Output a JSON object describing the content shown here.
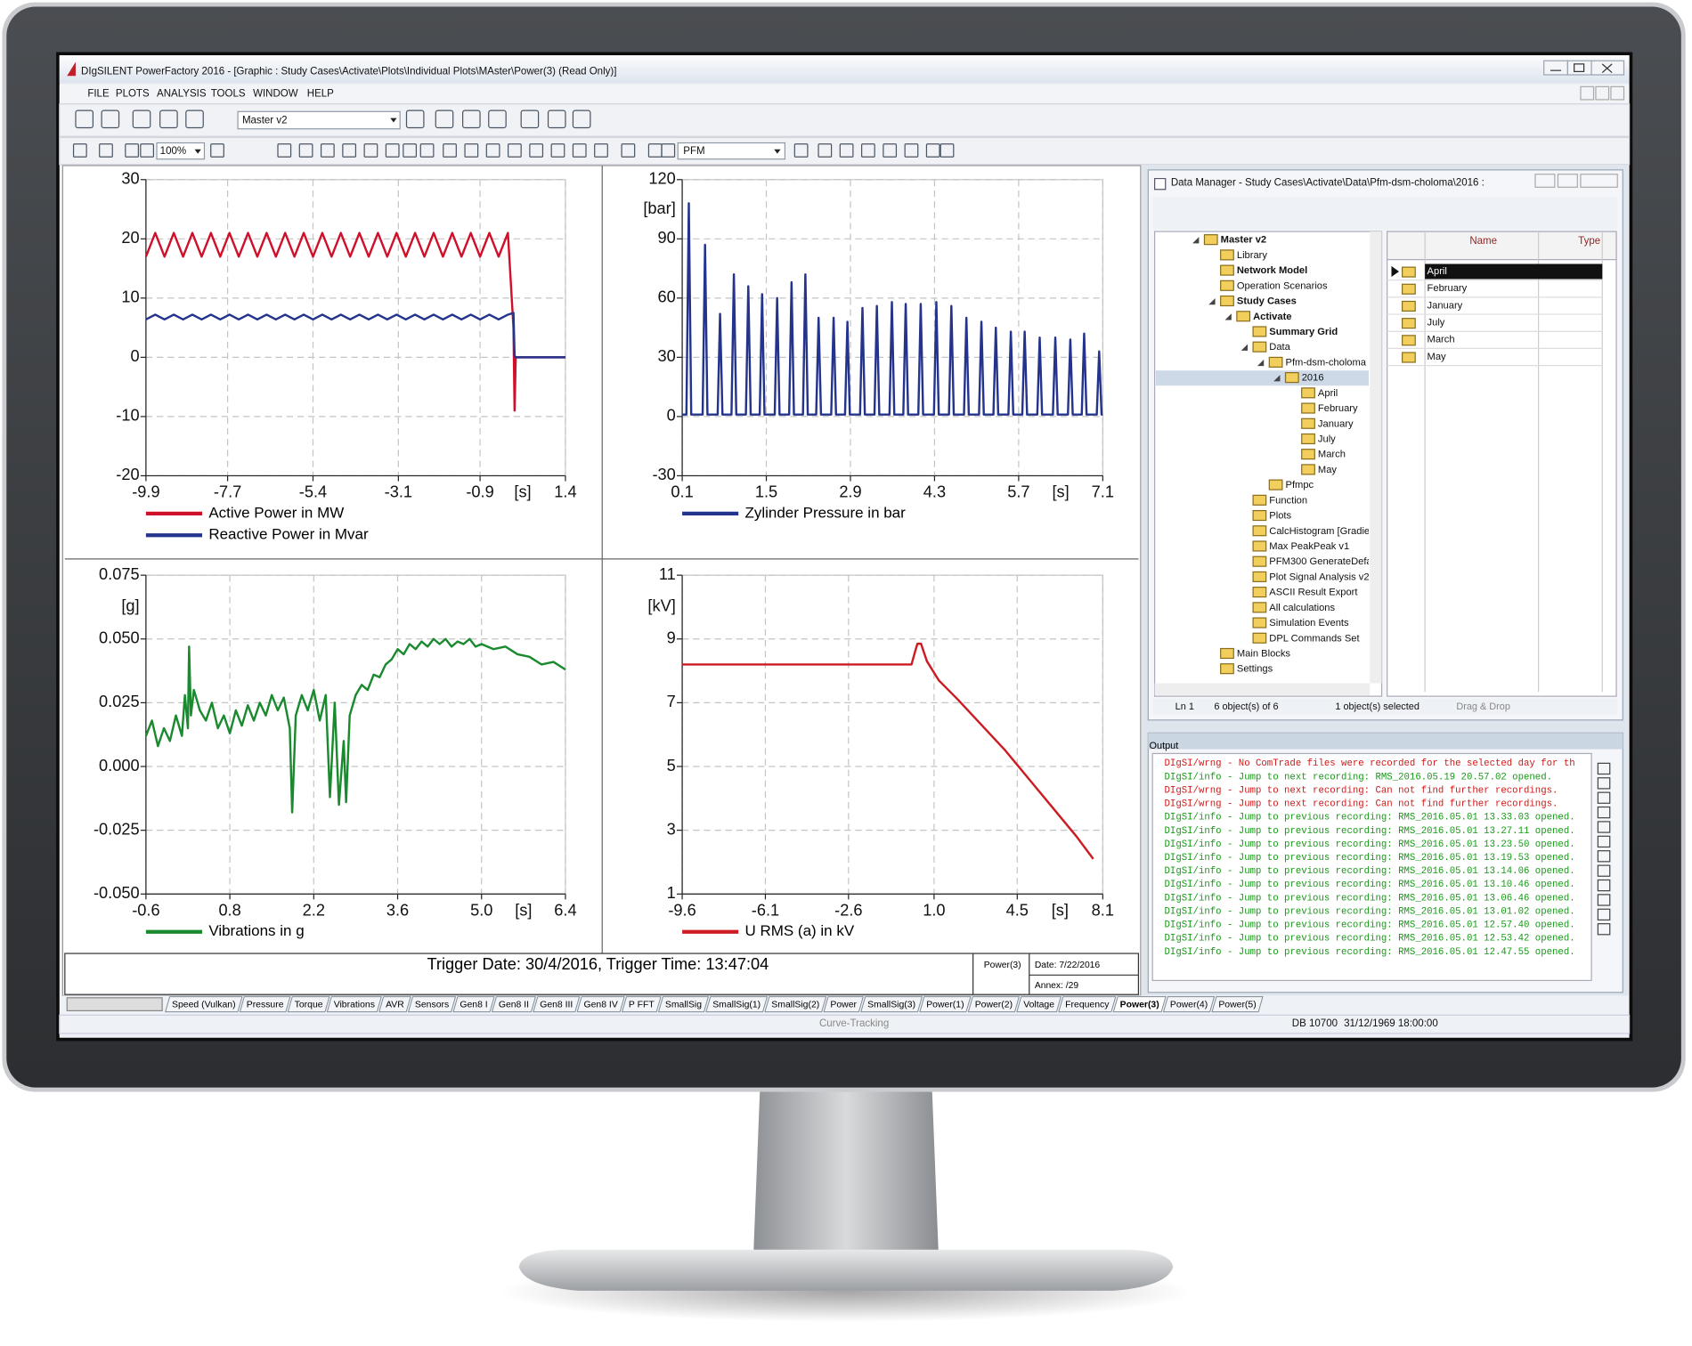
{
  "window": {
    "title": "DIgSILENT PowerFactory 2016 - [Graphic : Study Cases\\Activate\\Plots\\Individual Plots\\MAster\\Power(3)  (Read Only)]"
  },
  "menu": [
    "FILE",
    "PLOTS",
    "ANALYSIS",
    "TOOLS",
    "WINDOW",
    "HELP"
  ],
  "toolbar": {
    "project": "Master v2",
    "zoom": "100%",
    "mode": "PFM"
  },
  "chart_data": [
    {
      "type": "line",
      "grid": true,
      "xlabel": "[s]",
      "xlim": [
        -9.9,
        1.4
      ],
      "xticks": [
        -9.9,
        -7.7,
        -5.4,
        -3.1,
        -0.9,
        1.4
      ],
      "ylim": [
        -20,
        30
      ],
      "yticks": [
        -20,
        -10,
        0,
        10,
        20,
        30
      ],
      "x": [
        -9.9,
        -9.65,
        -9.4,
        -9.15,
        -8.9,
        -8.65,
        -8.4,
        -8.15,
        -7.9,
        -7.65,
        -7.4,
        -7.15,
        -6.9,
        -6.65,
        -6.4,
        -6.15,
        -5.9,
        -5.65,
        -5.4,
        -5.15,
        -4.9,
        -4.65,
        -4.4,
        -4.15,
        -3.9,
        -3.65,
        -3.4,
        -3.15,
        -2.9,
        -2.65,
        -2.4,
        -2.15,
        -1.9,
        -1.65,
        -1.4,
        -1.15,
        -0.9,
        -0.65,
        -0.4,
        -0.15,
        0.0,
        0.03,
        0.06,
        1.4
      ],
      "series": [
        {
          "name": "Active Power in MW",
          "color": "#d0102a",
          "values": [
            17,
            21,
            17,
            21,
            17,
            21,
            17,
            21,
            17,
            21,
            17,
            21,
            17,
            21,
            17,
            21,
            17,
            21,
            17,
            21,
            17,
            21,
            17,
            21,
            17,
            21,
            17,
            21,
            17,
            21,
            17,
            21,
            17,
            21,
            17,
            21,
            17,
            21,
            17,
            21,
            5,
            -9,
            0,
            0
          ]
        },
        {
          "name": "Reactive Power in Mvar",
          "color": "#24348c",
          "values": [
            6.4,
            7.2,
            6.4,
            7.2,
            6.4,
            7.2,
            6.4,
            7.2,
            6.4,
            7.2,
            6.4,
            7.2,
            6.4,
            7.2,
            6.4,
            7.2,
            6.4,
            7.2,
            6.4,
            7.2,
            6.4,
            7.2,
            6.4,
            7.2,
            6.4,
            7.2,
            6.4,
            7.2,
            6.4,
            7.2,
            6.4,
            7.2,
            6.4,
            7.2,
            6.4,
            7.2,
            6.4,
            7.2,
            6.4,
            7.2,
            7.5,
            0.3,
            0,
            0
          ]
        }
      ]
    },
    {
      "type": "line",
      "grid": true,
      "xlabel": "[s]",
      "ylabel": "[bar]",
      "xlim": [
        0.1,
        7.1
      ],
      "xticks": [
        0.1,
        1.5,
        2.9,
        4.3,
        5.7,
        7.1
      ],
      "ylim": [
        -30,
        120
      ],
      "yticks": [
        -30,
        0,
        30,
        60,
        90,
        120
      ],
      "x": [
        0.1,
        0.17,
        0.21,
        0.25,
        0.44,
        0.48,
        0.52,
        0.69,
        0.73,
        0.77,
        0.92,
        0.96,
        1.0,
        1.16,
        1.2,
        1.24,
        1.39,
        1.43,
        1.47,
        1.64,
        1.68,
        1.72,
        1.88,
        1.92,
        1.96,
        2.11,
        2.15,
        2.19,
        2.33,
        2.37,
        2.41,
        2.58,
        2.62,
        2.66,
        2.81,
        2.85,
        2.89,
        3.06,
        3.1,
        3.14,
        3.3,
        3.34,
        3.38,
        3.55,
        3.59,
        3.63,
        3.78,
        3.82,
        3.86,
        4.03,
        4.07,
        4.11,
        4.29,
        4.33,
        4.37,
        4.54,
        4.58,
        4.62,
        4.79,
        4.83,
        4.87,
        5.04,
        5.08,
        5.12,
        5.28,
        5.32,
        5.36,
        5.53,
        5.57,
        5.61,
        5.76,
        5.8,
        5.84,
        6.01,
        6.05,
        6.09,
        6.27,
        6.31,
        6.35,
        6.52,
        6.56,
        6.6,
        6.75,
        6.79,
        6.83,
        7.0,
        7.04,
        7.08,
        7.1
      ],
      "series": [
        {
          "name": "Zylinder Pressure in bar",
          "color": "#24348c",
          "values": [
            1,
            1,
            108,
            1,
            1,
            87,
            1,
            1,
            52,
            1,
            1,
            72,
            1,
            1,
            66,
            1,
            1,
            62,
            1,
            1,
            60,
            1,
            1,
            68,
            1,
            1,
            72,
            1,
            1,
            50,
            1,
            1,
            50,
            1,
            1,
            48,
            1,
            1,
            55,
            1,
            1,
            56,
            1,
            1,
            58,
            1,
            1,
            57,
            1,
            1,
            57,
            1,
            1,
            58,
            1,
            1,
            56,
            1,
            1,
            50,
            1,
            1,
            48,
            1,
            1,
            45,
            1,
            1,
            43,
            1,
            1,
            43,
            1,
            1,
            40,
            1,
            1,
            40,
            1,
            1,
            39,
            1,
            1,
            42,
            1,
            1,
            33,
            1,
            1
          ]
        }
      ]
    },
    {
      "type": "line",
      "grid": true,
      "xlabel": "[s]",
      "ylabel": "[g]",
      "xlim": [
        -0.6,
        6.4
      ],
      "xticks": [
        -0.6,
        0.8,
        2.2,
        3.6,
        {
          "value": 5.0,
          "label": "5.0"
        },
        6.4
      ],
      "ylim": [
        -0.05,
        0.075
      ],
      "yticks": [
        {
          "value": -0.05,
          "label": "-0.050"
        },
        {
          "value": -0.025,
          "label": "-0.025"
        },
        {
          "value": 0,
          "label": "0.000"
        },
        {
          "value": 0.025,
          "label": "0.025"
        },
        {
          "value": 0.05,
          "label": "0.050"
        },
        {
          "value": 0.075,
          "label": "0.075"
        }
      ],
      "x": [
        -0.6,
        -0.5,
        -0.4,
        -0.3,
        -0.2,
        -0.1,
        0.0,
        0.05,
        0.1,
        0.12,
        0.15,
        0.2,
        0.3,
        0.4,
        0.5,
        0.6,
        0.7,
        0.8,
        0.9,
        1.0,
        1.1,
        1.2,
        1.3,
        1.4,
        1.5,
        1.6,
        1.7,
        1.8,
        1.84,
        1.9,
        2.0,
        2.1,
        2.2,
        2.3,
        2.4,
        2.47,
        2.55,
        2.62,
        2.7,
        2.74,
        2.8,
        2.9,
        3.0,
        3.1,
        3.2,
        3.3,
        3.4,
        3.5,
        3.6,
        3.7,
        3.8,
        3.9,
        4.0,
        4.1,
        4.2,
        4.3,
        4.4,
        4.5,
        4.6,
        4.7,
        4.8,
        4.9,
        5.0,
        5.2,
        5.4,
        5.6,
        5.8,
        6.0,
        6.2,
        6.4
      ],
      "series": [
        {
          "name": "Vibrations in g",
          "color": "#1a8a2e",
          "values": [
            0.012,
            0.018,
            0.008,
            0.015,
            0.01,
            0.02,
            0.012,
            0.028,
            0.015,
            0.047,
            0.02,
            0.03,
            0.022,
            0.018,
            0.025,
            0.015,
            0.02,
            0.013,
            0.022,
            0.016,
            0.024,
            0.018,
            0.025,
            0.02,
            0.028,
            0.022,
            0.027,
            0.015,
            -0.018,
            0.02,
            0.028,
            0.022,
            0.03,
            0.018,
            0.028,
            -0.012,
            0.025,
            -0.015,
            0.01,
            -0.014,
            0.02,
            0.028,
            0.032,
            0.03,
            0.036,
            0.035,
            0.04,
            0.042,
            0.046,
            0.044,
            0.048,
            0.046,
            0.049,
            0.047,
            0.05,
            0.048,
            0.05,
            0.047,
            0.049,
            0.048,
            0.05,
            0.047,
            0.048,
            0.046,
            0.047,
            0.044,
            0.043,
            0.04,
            0.041,
            0.038
          ]
        }
      ]
    },
    {
      "type": "line",
      "grid": true,
      "xlabel": "[s]",
      "ylabel": "[kV]",
      "xlim": [
        -9.6,
        8.1
      ],
      "xticks": [
        -9.6,
        -6.1,
        -2.6,
        {
          "value": 1.0,
          "label": "1.0"
        },
        4.5,
        8.1
      ],
      "ylim": [
        1,
        11
      ],
      "yticks": [
        1,
        3,
        5,
        7,
        9,
        11
      ],
      "x": [
        -9.6,
        0.05,
        0.2,
        0.3,
        0.45,
        0.7,
        1.2,
        2.0,
        3.0,
        4.0,
        5.0,
        6.0,
        7.0,
        7.7
      ],
      "series": [
        {
          "name": "U RMS (a) in kV",
          "color": "#cc1b22",
          "values": [
            8.2,
            8.2,
            8.6,
            8.85,
            8.85,
            8.3,
            7.7,
            7.1,
            6.3,
            5.5,
            4.6,
            3.7,
            2.8,
            2.1
          ]
        }
      ]
    }
  ],
  "footer": {
    "trigger": "Trigger Date: 30/4/2016, Trigger Time: 13:47:04",
    "page": "Power(3)",
    "date": "Date: 7/22/2016",
    "annex": "Annex:  /29"
  },
  "tabs": [
    "Speed (Vulkan)",
    "Pressure",
    "Torque",
    "Vibrations",
    "AVR",
    "Sensors",
    "Gen8 I",
    "Gen8 II",
    "Gen8 III",
    "Gen8 IV",
    "P FFT",
    "SmallSig",
    "SmallSig(1)",
    "SmallSig(2)",
    "Power",
    "SmallSig(3)",
    "Power(1)",
    "Power(2)",
    "Voltage",
    "Frequency",
    "Power(3)",
    "Power(4)",
    "Power(5)"
  ],
  "active_tab": "Power(3)",
  "status": {
    "mode": "Curve-Tracking",
    "db": "DB 10700",
    "time": "31/12/1969 18:00:00"
  },
  "data_manager": {
    "title": "Data Manager - Study Cases\\Activate\\Data\\Pfm-dsm-choloma\\2016 :",
    "tree": [
      {
        "label": "Master v2",
        "bold": true,
        "children": [
          {
            "label": "Library"
          },
          {
            "label": "Network Model",
            "bold": true
          },
          {
            "label": "Operation Scenarios"
          },
          {
            "label": "Study Cases",
            "bold": true,
            "children": [
              {
                "label": "Activate",
                "bold": true,
                "children": [
                  {
                    "label": "Summary Grid",
                    "bold": true
                  },
                  {
                    "label": "Data",
                    "children": [
                      {
                        "label": "Pfm-dsm-choloma",
                        "children": [
                          {
                            "label": "2016",
                            "selected": true,
                            "children": [
                              {
                                "label": "April"
                              },
                              {
                                "label": "February"
                              },
                              {
                                "label": "January"
                              },
                              {
                                "label": "July"
                              },
                              {
                                "label": "March"
                              },
                              {
                                "label": "May"
                              }
                            ]
                          }
                        ]
                      },
                      {
                        "label": "Pfmpc"
                      }
                    ]
                  },
                  {
                    "label": "Function"
                  },
                  {
                    "label": "Plots"
                  },
                  {
                    "label": "CalcHistogram [Gradie"
                  },
                  {
                    "label": "Max PeakPeak v1"
                  },
                  {
                    "label": "PFM300 GenerateDefau"
                  },
                  {
                    "label": "Plot Signal Analysis v2"
                  },
                  {
                    "label": "ASCII Result Export"
                  },
                  {
                    "label": "All calculations"
                  },
                  {
                    "label": "Simulation Events"
                  },
                  {
                    "label": "DPL Commands Set"
                  }
                ]
              }
            ]
          },
          {
            "label": "Main Blocks"
          },
          {
            "label": "Settings"
          }
        ]
      }
    ],
    "columns": [
      "Name",
      "Type"
    ],
    "items": [
      "April",
      "February",
      "January",
      "July",
      "March",
      "May"
    ],
    "status": [
      "Ln 1",
      "6 object(s) of 6",
      "1 object(s) selected",
      "Drag & Drop"
    ]
  },
  "output": {
    "title": "Output",
    "lines": [
      {
        "text": "DIgSI/wrng - No ComTrade files were recorded for the selected day for th",
        "color": "#d01818"
      },
      {
        "text": "DIgSI/info - Jump to next recording: RMS_2016.05.19 20.57.02 opened.",
        "color": "#169a16"
      },
      {
        "text": "DIgSI/wrng - Jump to next recording: Can not find further recordings.",
        "color": "#d01818"
      },
      {
        "text": "DIgSI/wrng - Jump to next recording: Can not find further recordings.",
        "color": "#d01818"
      },
      {
        "text": "DIgSI/info - Jump to previous recording: RMS_2016.05.01 13.33.03 opened.",
        "color": "#169a16"
      },
      {
        "text": "DIgSI/info - Jump to previous recording: RMS_2016.05.01 13.27.11 opened.",
        "color": "#169a16"
      },
      {
        "text": "DIgSI/info - Jump to previous recording: RMS_2016.05.01 13.23.50 opened.",
        "color": "#169a16"
      },
      {
        "text": "DIgSI/info - Jump to previous recording: RMS_2016.05.01 13.19.53 opened.",
        "color": "#169a16"
      },
      {
        "text": "DIgSI/info - Jump to previous recording: RMS_2016.05.01 13.14.06 opened.",
        "color": "#169a16"
      },
      {
        "text": "DIgSI/info - Jump to previous recording: RMS_2016.05.01 13.10.46 opened.",
        "color": "#169a16"
      },
      {
        "text": "DIgSI/info - Jump to previous recording: RMS_2016.05.01 13.06.46 opened.",
        "color": "#169a16"
      },
      {
        "text": "DIgSI/info - Jump to previous recording: RMS_2016.05.01 13.01.02 opened.",
        "color": "#169a16"
      },
      {
        "text": "DIgSI/info - Jump to previous recording: RMS_2016.05.01 12.57.40 opened.",
        "color": "#169a16"
      },
      {
        "text": "DIgSI/info - Jump to previous recording: RMS_2016.05.01 12.53.42 opened.",
        "color": "#169a16"
      },
      {
        "text": "DIgSI/info - Jump to previous recording: RMS_2016.05.01 12.47.55 opened.",
        "color": "#169a16"
      }
    ]
  }
}
